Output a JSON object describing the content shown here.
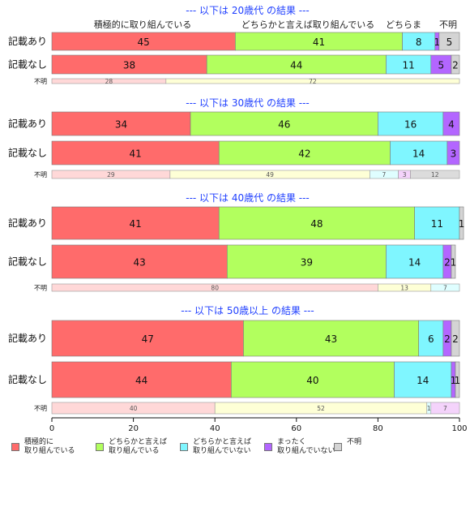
{
  "chart_data": {
    "type": "bar",
    "orientation": "horizontal-stacked-100",
    "xlim": [
      0,
      100
    ],
    "xticks": [
      "0",
      "20",
      "40",
      "60",
      "80",
      "100"
    ],
    "grid": false,
    "legend_position": "bottom",
    "categories": [
      {
        "name": "積極的に取り組んでいる",
        "legend_lines": [
          "積極的に",
          "取り組んでいる"
        ],
        "color": "#ff6b6b",
        "light": "#ffd8d8"
      },
      {
        "name": "どちらかと言えば取り組んでいる",
        "legend_lines": [
          "どちらかと言えば",
          "取り組んでいる"
        ],
        "color": "#b2ff5e",
        "light": "#feffd6"
      },
      {
        "name": "どちらかと言えば取り組んでいない",
        "legend_lines": [
          "どちらかと言えば",
          "取り組んでいない"
        ],
        "color": "#7ff6ff",
        "light": "#dffeff"
      },
      {
        "name": "まったく取り組んでいない",
        "legend_lines": [
          "まったく",
          "取り組んでいない"
        ],
        "color": "#b366ff",
        "light": "#f4d3fb"
      },
      {
        "name": "不明",
        "legend_lines": [
          "不明"
        ],
        "color": "#d4d4d4",
        "light": "#dcdcdc"
      }
    ],
    "top_headers": [
      "積極的に取り組んでいる",
      "どちらかと言えば取り組んでいる",
      "どちらま",
      "不明"
    ],
    "groups": [
      {
        "title": "--- 以下は 20歳代 の結果 ---",
        "rows": [
          {
            "label": "記載あり",
            "values": [
              45,
              41,
              8,
              1,
              5
            ],
            "labels": [
              "45",
              "41",
              "8",
              "1",
              "5"
            ]
          },
          {
            "label": "記載なし",
            "values": [
              38,
              44,
              11,
              5,
              2
            ],
            "labels": [
              "38",
              "44",
              "11",
              "5",
              "2"
            ]
          },
          {
            "label": "不明",
            "values": [
              28,
              72,
              0,
              0,
              0
            ],
            "labels": [
              "28",
              "72",
              "",
              "",
              ""
            ]
          }
        ]
      },
      {
        "title": "--- 以下は 30歳代 の結果 ---",
        "rows": [
          {
            "label": "記載あり",
            "values": [
              34,
              46,
              16,
              4,
              0
            ],
            "labels": [
              "34",
              "46",
              "16",
              "4",
              ""
            ]
          },
          {
            "label": "記載なし",
            "values": [
              41,
              42,
              14,
              3,
              0
            ],
            "labels": [
              "41",
              "42",
              "14",
              "3",
              ""
            ]
          },
          {
            "label": "不明",
            "values": [
              29,
              49,
              7,
              3,
              12
            ],
            "labels": [
              "29",
              "49",
              "7",
              "3",
              "12"
            ]
          }
        ]
      },
      {
        "title": "--- 以下は 40歳代 の結果 ---",
        "rows": [
          {
            "label": "記載あり",
            "values": [
              41,
              48,
              11,
              0,
              1
            ],
            "labels": [
              "41",
              "48",
              "11",
              "",
              "1"
            ]
          },
          {
            "label": "記載なし",
            "values": [
              43,
              39,
              14,
              2,
              1
            ],
            "labels": [
              "43",
              "39",
              "14",
              "2",
              "1"
            ]
          },
          {
            "label": "不明",
            "values": [
              80,
              13,
              7,
              0,
              0
            ],
            "labels": [
              "80",
              "13",
              "7",
              "",
              ""
            ]
          }
        ]
      },
      {
        "title": "--- 以下は 50歳以上 の結果 ---",
        "rows": [
          {
            "label": "記載あり",
            "values": [
              47,
              43,
              6,
              2,
              2
            ],
            "labels": [
              "47",
              "43",
              "6",
              "2",
              "2"
            ]
          },
          {
            "label": "記載なし",
            "values": [
              44,
              40,
              14,
              1,
              1
            ],
            "labels": [
              "44",
              "40",
              "14",
              "1",
              "1"
            ]
          },
          {
            "label": "不明",
            "values": [
              40,
              52,
              1,
              7,
              0
            ],
            "labels": [
              "40",
              "52",
              "1",
              "7",
              ""
            ]
          }
        ]
      }
    ]
  }
}
